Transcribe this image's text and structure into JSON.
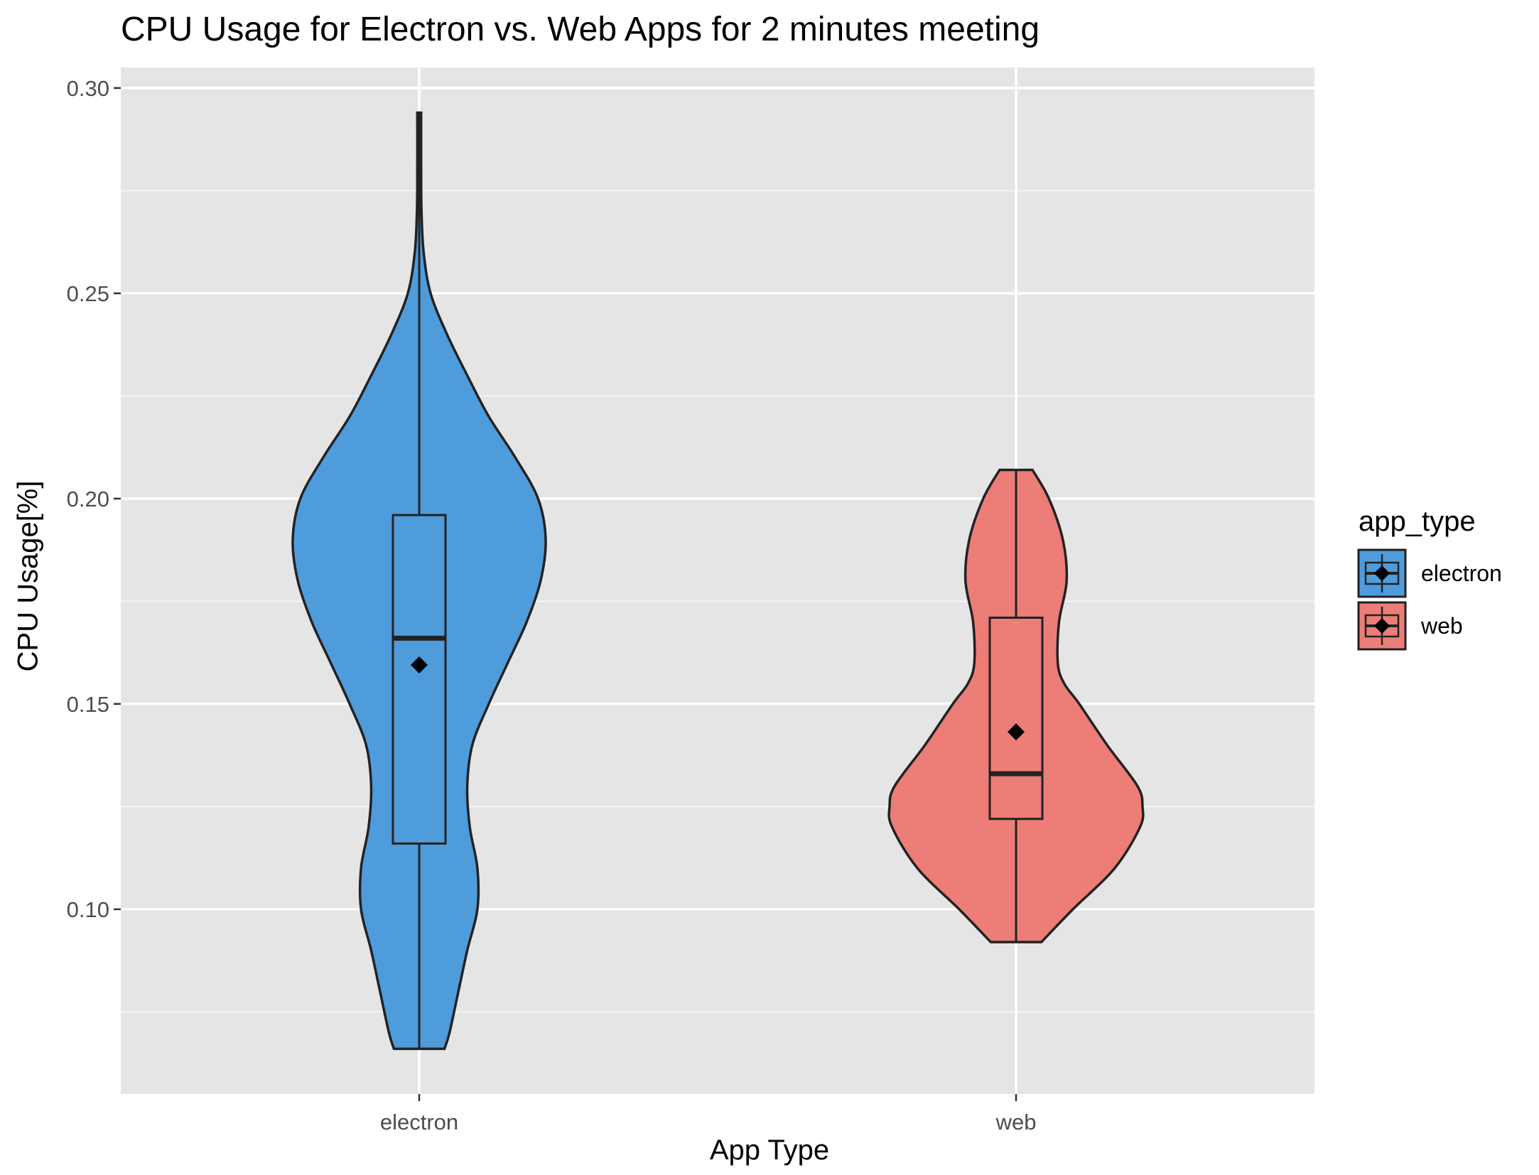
{
  "chart_data": {
    "type": "violin",
    "title": "CPU Usage for Electron vs. Web Apps for 2 minutes meeting",
    "xlabel": "App Type",
    "ylabel": "CPU Usage[%]",
    "categories": [
      "electron",
      "web"
    ],
    "ylim": [
      0.055,
      0.305
    ],
    "yticks": [
      "0.10",
      "0.15",
      "0.20",
      "0.25",
      "0.30"
    ],
    "grid": true,
    "legend": {
      "title": "app_type",
      "position": "right",
      "items": [
        "electron",
        "web"
      ]
    },
    "series": [
      {
        "name": "electron",
        "color": "#4E9CDB",
        "box": {
          "min": 0.066,
          "q1": 0.116,
          "median": 0.166,
          "q3": 0.196,
          "max": 0.294
        },
        "mean": 0.1595,
        "density": [
          [
            0.066,
            0.2
          ],
          [
            0.07,
            0.24
          ],
          [
            0.08,
            0.31
          ],
          [
            0.09,
            0.38
          ],
          [
            0.1,
            0.46
          ],
          [
            0.11,
            0.46
          ],
          [
            0.12,
            0.4
          ],
          [
            0.13,
            0.38
          ],
          [
            0.14,
            0.42
          ],
          [
            0.15,
            0.55
          ],
          [
            0.16,
            0.7
          ],
          [
            0.17,
            0.85
          ],
          [
            0.18,
            0.96
          ],
          [
            0.19,
            1.0
          ],
          [
            0.2,
            0.94
          ],
          [
            0.21,
            0.76
          ],
          [
            0.22,
            0.55
          ],
          [
            0.23,
            0.38
          ],
          [
            0.24,
            0.22
          ],
          [
            0.25,
            0.09
          ],
          [
            0.26,
            0.035
          ],
          [
            0.27,
            0.018
          ],
          [
            0.28,
            0.015
          ],
          [
            0.294,
            0.015
          ]
        ]
      },
      {
        "name": "web",
        "color": "#EC7D77",
        "box": {
          "min": 0.092,
          "q1": 0.122,
          "median": 0.133,
          "q3": 0.171,
          "max": 0.207
        },
        "mean": 0.1432,
        "density": [
          [
            0.092,
            0.2
          ],
          [
            0.1,
            0.45
          ],
          [
            0.11,
            0.78
          ],
          [
            0.12,
            0.98
          ],
          [
            0.125,
            1.0
          ],
          [
            0.13,
            0.96
          ],
          [
            0.14,
            0.72
          ],
          [
            0.15,
            0.5
          ],
          [
            0.155,
            0.38
          ],
          [
            0.16,
            0.33
          ],
          [
            0.17,
            0.34
          ],
          [
            0.18,
            0.4
          ],
          [
            0.19,
            0.37
          ],
          [
            0.2,
            0.26
          ],
          [
            0.207,
            0.13
          ]
        ]
      }
    ]
  }
}
